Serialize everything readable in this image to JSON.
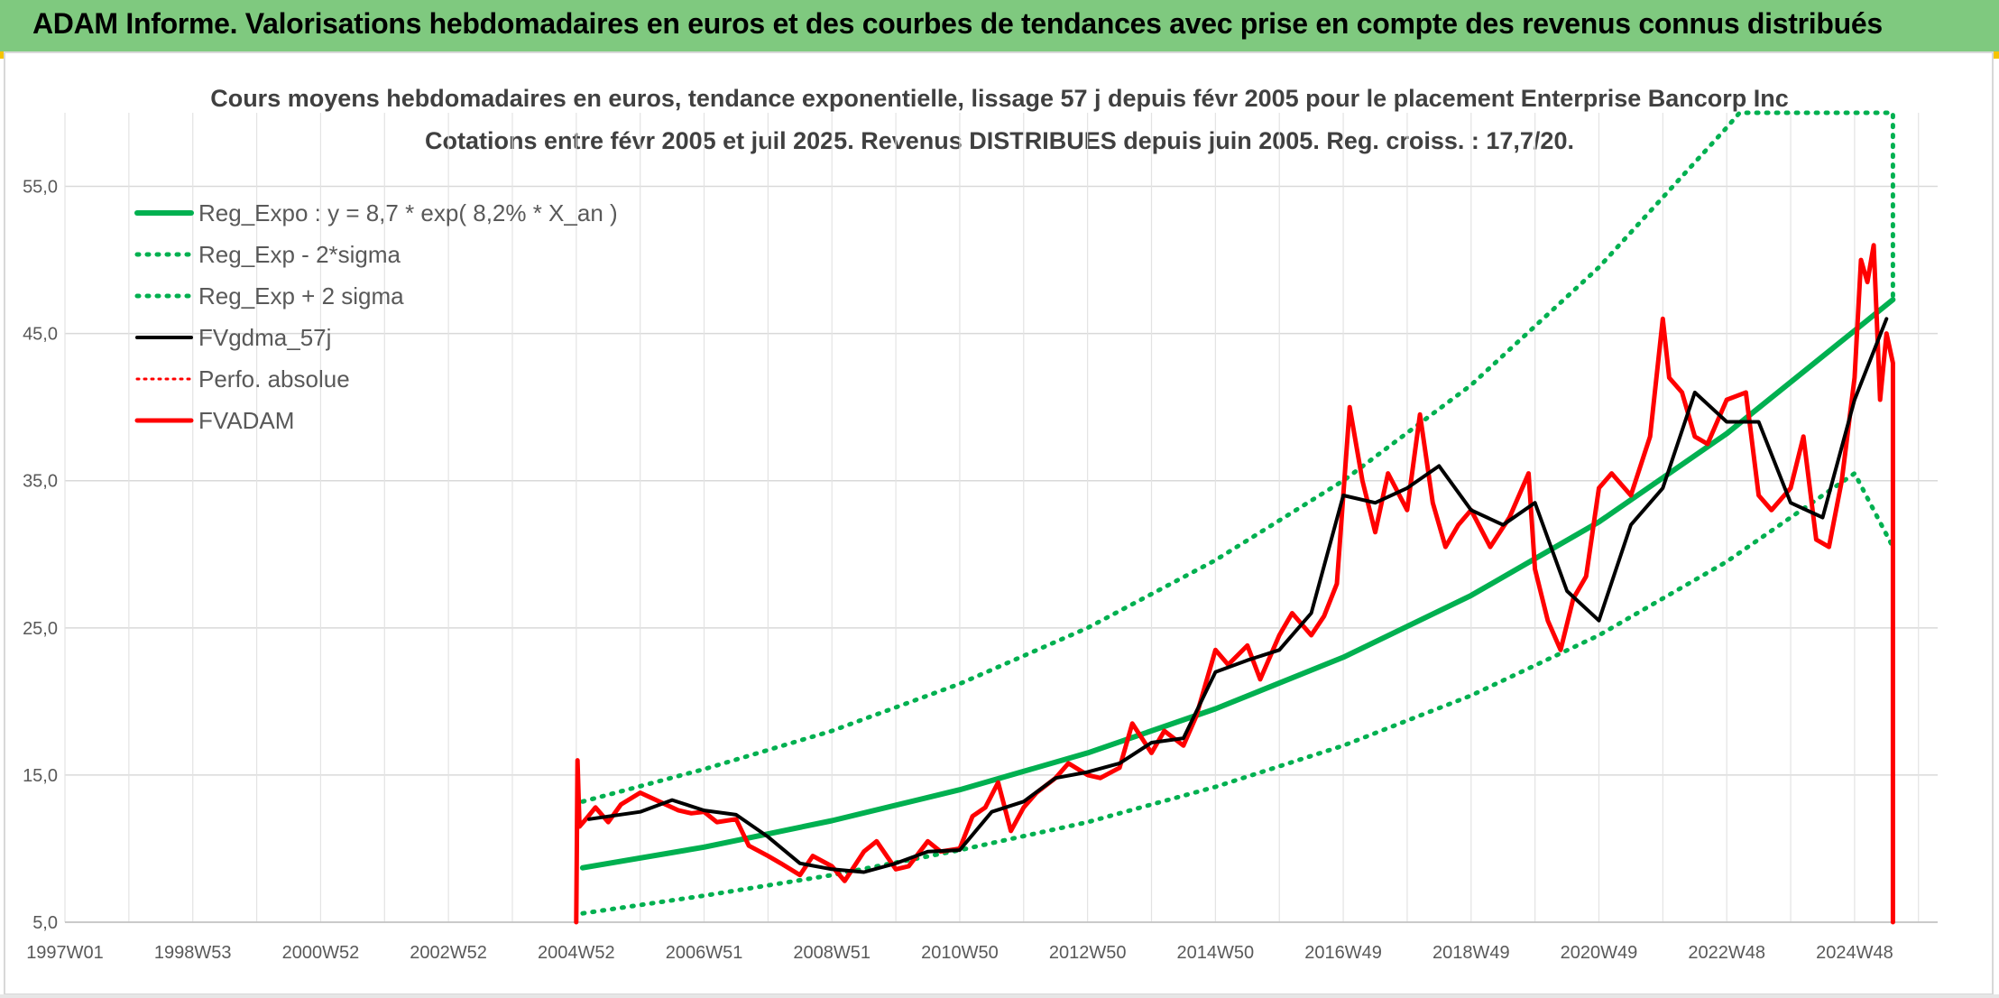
{
  "header": {
    "title": "ADAM Informe. Valorisations hebdomadaires en euros et des courbes de tendances avec prise en compte des revenus connus distribués"
  },
  "colors": {
    "banner": "#7fc97f",
    "reg_expo": "#00b050",
    "bands": "#00b050",
    "fvgdma": "#000000",
    "fvadam": "#ff0000"
  },
  "chart_data": {
    "type": "line",
    "title": "Cours moyens hebdomadaires en euros, tendance exponentielle, lissage 57 j depuis févr 2005 pour le placement Enterprise Bancorp Inc",
    "subtitle": "Cotations entre févr 2005 et juil 2025. Revenus DISTRIBUES depuis juin 2005. Reg. croiss. : 17,7/20.",
    "xlabel": "",
    "ylabel": "",
    "x_tick_labels": [
      "1997W01",
      "1998W53",
      "2000W52",
      "2002W52",
      "2004W52",
      "2006W51",
      "2008W51",
      "2010W50",
      "2012W50",
      "2014W50",
      "2016W49",
      "2018W49",
      "2020W49",
      "2022W48",
      "2024W48"
    ],
    "x_tick_years": [
      1997.0,
      1999.0,
      2001.0,
      2003.0,
      2005.0,
      2007.0,
      2009.0,
      2011.0,
      2013.0,
      2015.0,
      2017.0,
      2019.0,
      2021.0,
      2023.0,
      2025.0
    ],
    "xlim": [
      1997.0,
      2026.3
    ],
    "ylim": [
      5,
      60
    ],
    "y_ticks": [
      5,
      15,
      25,
      35,
      45,
      55
    ],
    "y_tick_labels": [
      "5,0",
      "15,0",
      "25,0",
      "35,0",
      "45,0",
      "55,0"
    ],
    "grid": true,
    "legend_position": "top-left",
    "legend": [
      {
        "label": "Reg_Expo : y = 8,7 * exp( 8,2% *  X_an )",
        "color": "#00b050",
        "style": "solid-thick"
      },
      {
        "label": "Reg_Exp - 2*sigma",
        "color": "#00b050",
        "style": "dotted"
      },
      {
        "label": "Reg_Exp + 2 sigma",
        "color": "#00b050",
        "style": "dotted"
      },
      {
        "label": "FVgdma_57j",
        "color": "#000000",
        "style": "solid"
      },
      {
        "label": "Perfo. absolue",
        "color": "#ff0000",
        "style": "dotted"
      },
      {
        "label": "FVADAM",
        "color": "#ff0000",
        "style": "solid-thick"
      }
    ],
    "series": [
      {
        "name": "Reg_Expo : y = 8,7 * exp( 8,2% *  X_an )",
        "x": [
          2005.1,
          2007.0,
          2009.0,
          2011.0,
          2013.0,
          2015.0,
          2017.0,
          2019.0,
          2021.0,
          2023.0,
          2025.0,
          2025.6
        ],
        "values": [
          8.7,
          10.1,
          11.9,
          14.0,
          16.5,
          19.5,
          23.0,
          27.2,
          32.2,
          38.2,
          45.2,
          47.3
        ]
      },
      {
        "name": "Reg_Exp - 2*sigma",
        "x": [
          2005.1,
          2007.0,
          2009.0,
          2011.0,
          2013.0,
          2015.0,
          2017.0,
          2019.0,
          2021.0,
          2023.0,
          2025.0,
          2025.6
        ],
        "values": [
          5.6,
          6.8,
          8.2,
          9.9,
          11.8,
          14.2,
          17.0,
          20.4,
          24.5,
          29.5,
          35.5,
          30.5
        ]
      },
      {
        "name": "Reg_Exp + 2 sigma",
        "x": [
          2005.1,
          2007.0,
          2009.0,
          2011.0,
          2013.0,
          2015.0,
          2017.0,
          2019.0,
          2021.0,
          2023.0,
          2023.2,
          2025.6,
          2025.6
        ],
        "values": [
          13.2,
          15.4,
          18.0,
          21.2,
          25.0,
          29.6,
          35.0,
          41.5,
          49.5,
          59.0,
          60.0,
          60.0,
          47.3
        ]
      },
      {
        "name": "FVgdma_57j",
        "x": [
          2005.2,
          2006.0,
          2006.5,
          2007.0,
          2007.5,
          2008.0,
          2008.5,
          2009.0,
          2009.5,
          2010.0,
          2010.5,
          2011.0,
          2011.5,
          2012.0,
          2012.5,
          2013.0,
          2013.5,
          2014.0,
          2014.5,
          2015.0,
          2015.5,
          2016.0,
          2016.5,
          2017.0,
          2017.5,
          2018.0,
          2018.5,
          2019.0,
          2019.5,
          2020.0,
          2020.5,
          2021.0,
          2021.5,
          2022.0,
          2022.5,
          2023.0,
          2023.5,
          2024.0,
          2024.5,
          2025.0,
          2025.5
        ],
        "values": [
          12.0,
          12.5,
          13.3,
          12.6,
          12.3,
          10.8,
          9.0,
          8.6,
          8.4,
          9.0,
          9.8,
          9.9,
          12.5,
          13.2,
          14.8,
          15.2,
          15.8,
          17.2,
          17.5,
          22.0,
          22.8,
          23.5,
          26.0,
          34.0,
          33.5,
          34.5,
          36.0,
          33.0,
          32.0,
          33.5,
          27.5,
          25.5,
          32.0,
          34.5,
          41.0,
          39.0,
          39.0,
          33.5,
          32.5,
          40.5,
          46.0
        ]
      },
      {
        "name": "FVADAM",
        "x": [
          2005.0,
          2005.02,
          2005.05,
          2005.15,
          2005.3,
          2005.5,
          2005.7,
          2006.0,
          2006.3,
          2006.6,
          2006.8,
          2007.0,
          2007.2,
          2007.5,
          2007.7,
          2008.0,
          2008.2,
          2008.5,
          2008.7,
          2009.0,
          2009.2,
          2009.5,
          2009.7,
          2010.0,
          2010.2,
          2010.5,
          2010.7,
          2011.0,
          2011.2,
          2011.4,
          2011.6,
          2011.8,
          2012.0,
          2012.2,
          2012.5,
          2012.7,
          2013.0,
          2013.2,
          2013.5,
          2013.7,
          2014.0,
          2014.2,
          2014.5,
          2014.7,
          2015.0,
          2015.2,
          2015.5,
          2015.7,
          2016.0,
          2016.2,
          2016.5,
          2016.7,
          2016.9,
          2017.0,
          2017.1,
          2017.3,
          2017.5,
          2017.7,
          2018.0,
          2018.2,
          2018.4,
          2018.6,
          2018.8,
          2019.0,
          2019.3,
          2019.6,
          2019.9,
          2020.0,
          2020.2,
          2020.4,
          2020.6,
          2020.8,
          2021.0,
          2021.2,
          2021.5,
          2021.8,
          2022.0,
          2022.1,
          2022.3,
          2022.5,
          2022.7,
          2023.0,
          2023.3,
          2023.5,
          2023.7,
          2024.0,
          2024.2,
          2024.4,
          2024.6,
          2024.8,
          2025.0,
          2025.1,
          2025.2,
          2025.3,
          2025.4,
          2025.5,
          2025.6,
          2025.6
        ],
        "values": [
          5.0,
          16.0,
          11.5,
          12.0,
          12.8,
          11.8,
          13.0,
          13.8,
          13.2,
          12.6,
          12.4,
          12.5,
          11.8,
          12.0,
          10.2,
          9.5,
          9.0,
          8.2,
          9.5,
          8.8,
          7.8,
          9.8,
          10.5,
          8.6,
          8.8,
          10.5,
          9.8,
          10.0,
          12.2,
          12.8,
          14.5,
          11.2,
          12.8,
          13.8,
          14.8,
          15.8,
          15.0,
          14.8,
          15.5,
          18.5,
          16.5,
          18.0,
          17.0,
          19.0,
          23.5,
          22.5,
          23.8,
          21.5,
          24.5,
          26.0,
          24.5,
          25.8,
          28.0,
          34.0,
          40.0,
          35.0,
          31.5,
          35.5,
          33.0,
          39.5,
          33.5,
          30.5,
          32.0,
          33.0,
          30.5,
          32.5,
          35.5,
          29.0,
          25.5,
          23.5,
          27.0,
          28.5,
          34.5,
          35.5,
          34.0,
          38.0,
          46.0,
          42.0,
          41.0,
          38.0,
          37.5,
          40.5,
          41.0,
          34.0,
          33.0,
          34.5,
          38.0,
          31.0,
          30.5,
          35.0,
          42.0,
          50.0,
          48.5,
          51.0,
          40.5,
          45.0,
          43.0,
          5.0
        ]
      }
    ]
  }
}
